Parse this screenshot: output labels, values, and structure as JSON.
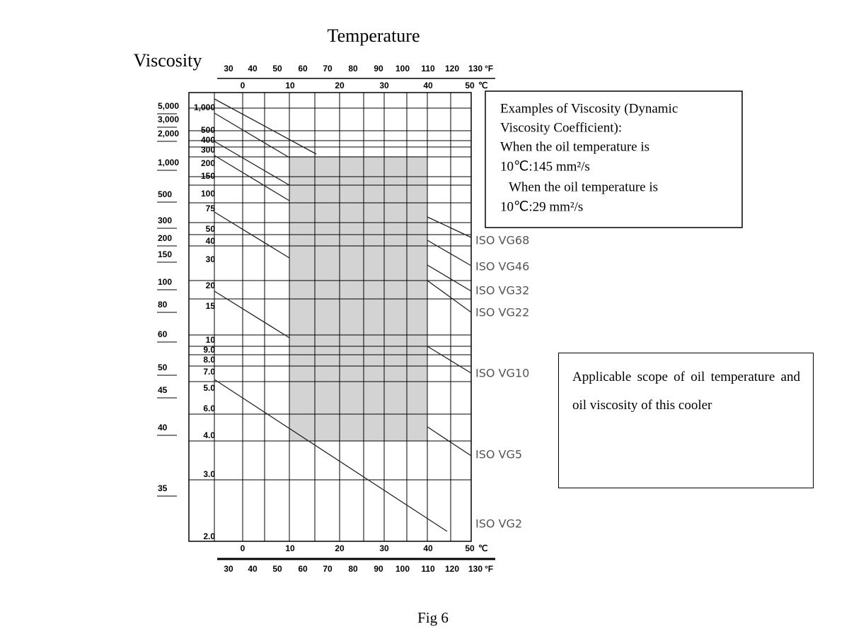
{
  "title": "Temperature",
  "y_label": "Viscosity",
  "caption": "Fig 6",
  "fahrenheit_ticks": [
    "30",
    "40",
    "50",
    "60",
    "70",
    "80",
    "90",
    "100",
    "110",
    "120",
    "130"
  ],
  "fahrenheit_unit": "°F",
  "celsius_ticks": [
    "0",
    "10",
    "20",
    "30",
    "40",
    "50"
  ],
  "celsius_unit": "℃",
  "outer_scale": [
    "5,000",
    "3,000",
    "2,000",
    "1,000",
    "500",
    "300",
    "200",
    "150",
    "100",
    "80",
    "60",
    "50",
    "45",
    "40",
    "35"
  ],
  "inner_scale": [
    "1,000",
    "500",
    "400",
    "300",
    "200",
    "150",
    "100",
    "75",
    "50",
    "40",
    "30",
    "20",
    "15",
    "10",
    "9.0",
    "8.0",
    "7.0",
    "5.0",
    "6.0",
    "4.0",
    "3.0",
    "2.0"
  ],
  "grades": [
    "ISO VG68",
    "ISO VG46",
    "ISO VG32",
    "ISO VG22",
    "ISO VG10",
    "ISO VG5",
    "ISO VG2"
  ],
  "example_box": [
    "Examples of Viscosity (Dynamic",
    "Viscosity Coefficient):",
    "When the oil temperature is",
    "10℃:145 mm²/s",
    "When the oil temperature is",
    "10℃:29 mm²/s"
  ],
  "scope_box": "Applicable scope of oil temperature and oil viscosity of this cooler"
}
